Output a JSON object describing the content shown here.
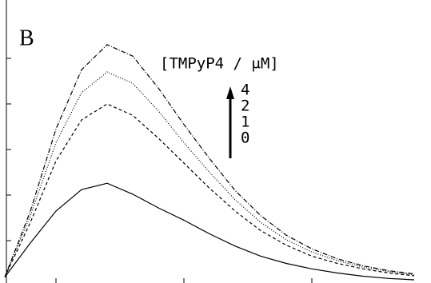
{
  "chart_data": {
    "type": "line",
    "title": "B",
    "legend_title": "[TMPyP4 / μM]",
    "x": [
      0.6,
      0.8,
      1.0,
      1.2,
      1.4,
      1.6,
      1.8,
      2.0,
      2.2,
      2.4,
      2.6,
      2.8,
      3.0,
      3.2,
      3.4,
      3.6,
      3.8
    ],
    "series": [
      {
        "name": "4",
        "color": "#000000",
        "dash": "6 2 1 2",
        "values": [
          0.2,
          1.65,
          3.45,
          4.75,
          5.3,
          5.05,
          4.35,
          3.55,
          2.8,
          2.1,
          1.55,
          1.12,
          0.82,
          0.6,
          0.45,
          0.34,
          0.27
        ]
      },
      {
        "name": "2",
        "color": "#000000",
        "dash": "1 2",
        "values": [
          0.2,
          1.55,
          3.15,
          4.25,
          4.7,
          4.45,
          3.85,
          3.15,
          2.5,
          1.9,
          1.4,
          1.02,
          0.75,
          0.56,
          0.42,
          0.32,
          0.25
        ]
      },
      {
        "name": "1",
        "color": "#000000",
        "dash": "4 3",
        "values": [
          0.2,
          1.4,
          2.75,
          3.65,
          4.0,
          3.75,
          3.25,
          2.7,
          2.15,
          1.65,
          1.22,
          0.9,
          0.66,
          0.5,
          0.38,
          0.29,
          0.23
        ]
      },
      {
        "name": "0",
        "color": "#000000",
        "dash": "none",
        "values": [
          0.2,
          0.95,
          1.65,
          2.12,
          2.26,
          2.02,
          1.72,
          1.45,
          1.15,
          0.88,
          0.66,
          0.5,
          0.38,
          0.29,
          0.22,
          0.17,
          0.14
        ]
      }
    ],
    "xlim": [
      0.6,
      3.9
    ],
    "xticks": [
      1,
      2,
      3
    ],
    "ylim": [
      0.1,
      6
    ],
    "yticks": [
      1,
      2,
      3,
      4,
      5
    ]
  }
}
